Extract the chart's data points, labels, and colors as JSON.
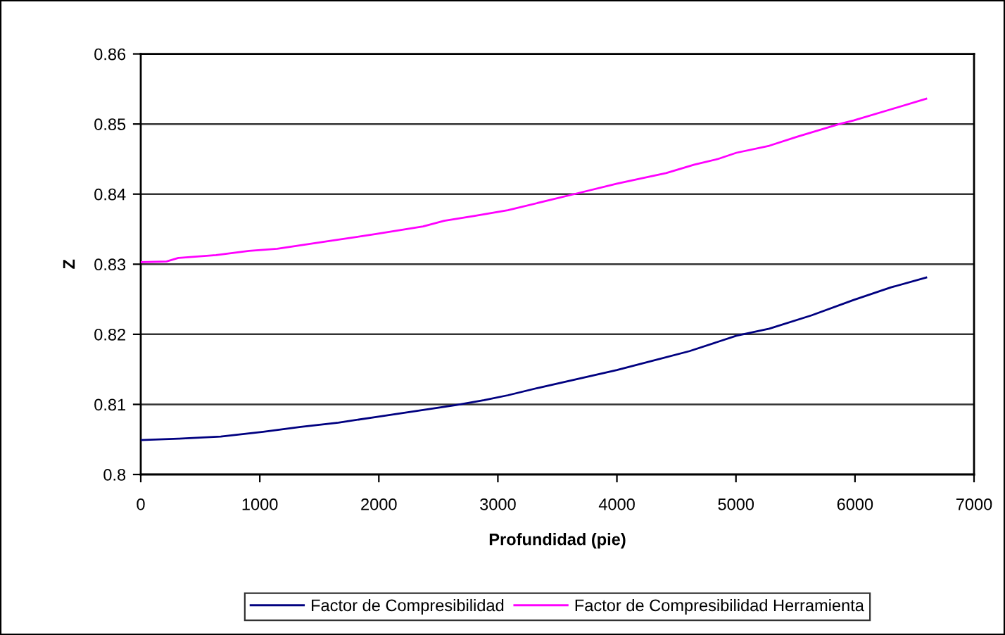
{
  "chart_data": {
    "type": "line",
    "xlabel": "Profundidad (pie)",
    "ylabel": "Z",
    "xlim": [
      0,
      7000
    ],
    "xticks": [
      0,
      1000,
      2000,
      3000,
      4000,
      5000,
      6000,
      7000
    ],
    "ylim": [
      0.8,
      0.86
    ],
    "yticks": [
      0.8,
      0.81,
      0.82,
      0.83,
      0.84,
      0.85,
      0.86
    ],
    "grid": "y",
    "legend": "bottom",
    "series": [
      {
        "name": "Factor de Compresibilidad",
        "color": "#000080",
        "x": [
          0,
          316,
          672,
          1028,
          1344,
          1660,
          1976,
          2292,
          2648,
          2885,
          3083,
          3350,
          4000,
          4610,
          5004,
          5280,
          5634,
          5988,
          6303,
          6598
        ],
        "values": [
          0.8049,
          0.8051,
          0.8054,
          0.8061,
          0.8068,
          0.8074,
          0.8082,
          0.809,
          0.8099,
          0.8106,
          0.8113,
          0.8124,
          0.8149,
          0.8176,
          0.8198,
          0.8208,
          0.8227,
          0.8249,
          0.8267,
          0.8281
        ]
      },
      {
        "name": "Factor de Compresibilidad Herramienta",
        "color": "#ff00ff",
        "x": [
          0,
          217,
          316,
          632,
          909,
          1146,
          1581,
          1976,
          2372,
          2549,
          2806,
          3083,
          3665,
          4000,
          4413,
          4650,
          4846,
          5004,
          5280,
          5516,
          5870,
          5988,
          6303,
          6598
        ],
        "values": [
          0.8303,
          0.8304,
          0.8309,
          0.8313,
          0.8319,
          0.8322,
          0.8333,
          0.8343,
          0.8354,
          0.8362,
          0.8369,
          0.8377,
          0.8401,
          0.8415,
          0.843,
          0.8442,
          0.845,
          0.8459,
          0.8469,
          0.8482,
          0.85,
          0.8505,
          0.8521,
          0.8536
        ]
      }
    ]
  }
}
